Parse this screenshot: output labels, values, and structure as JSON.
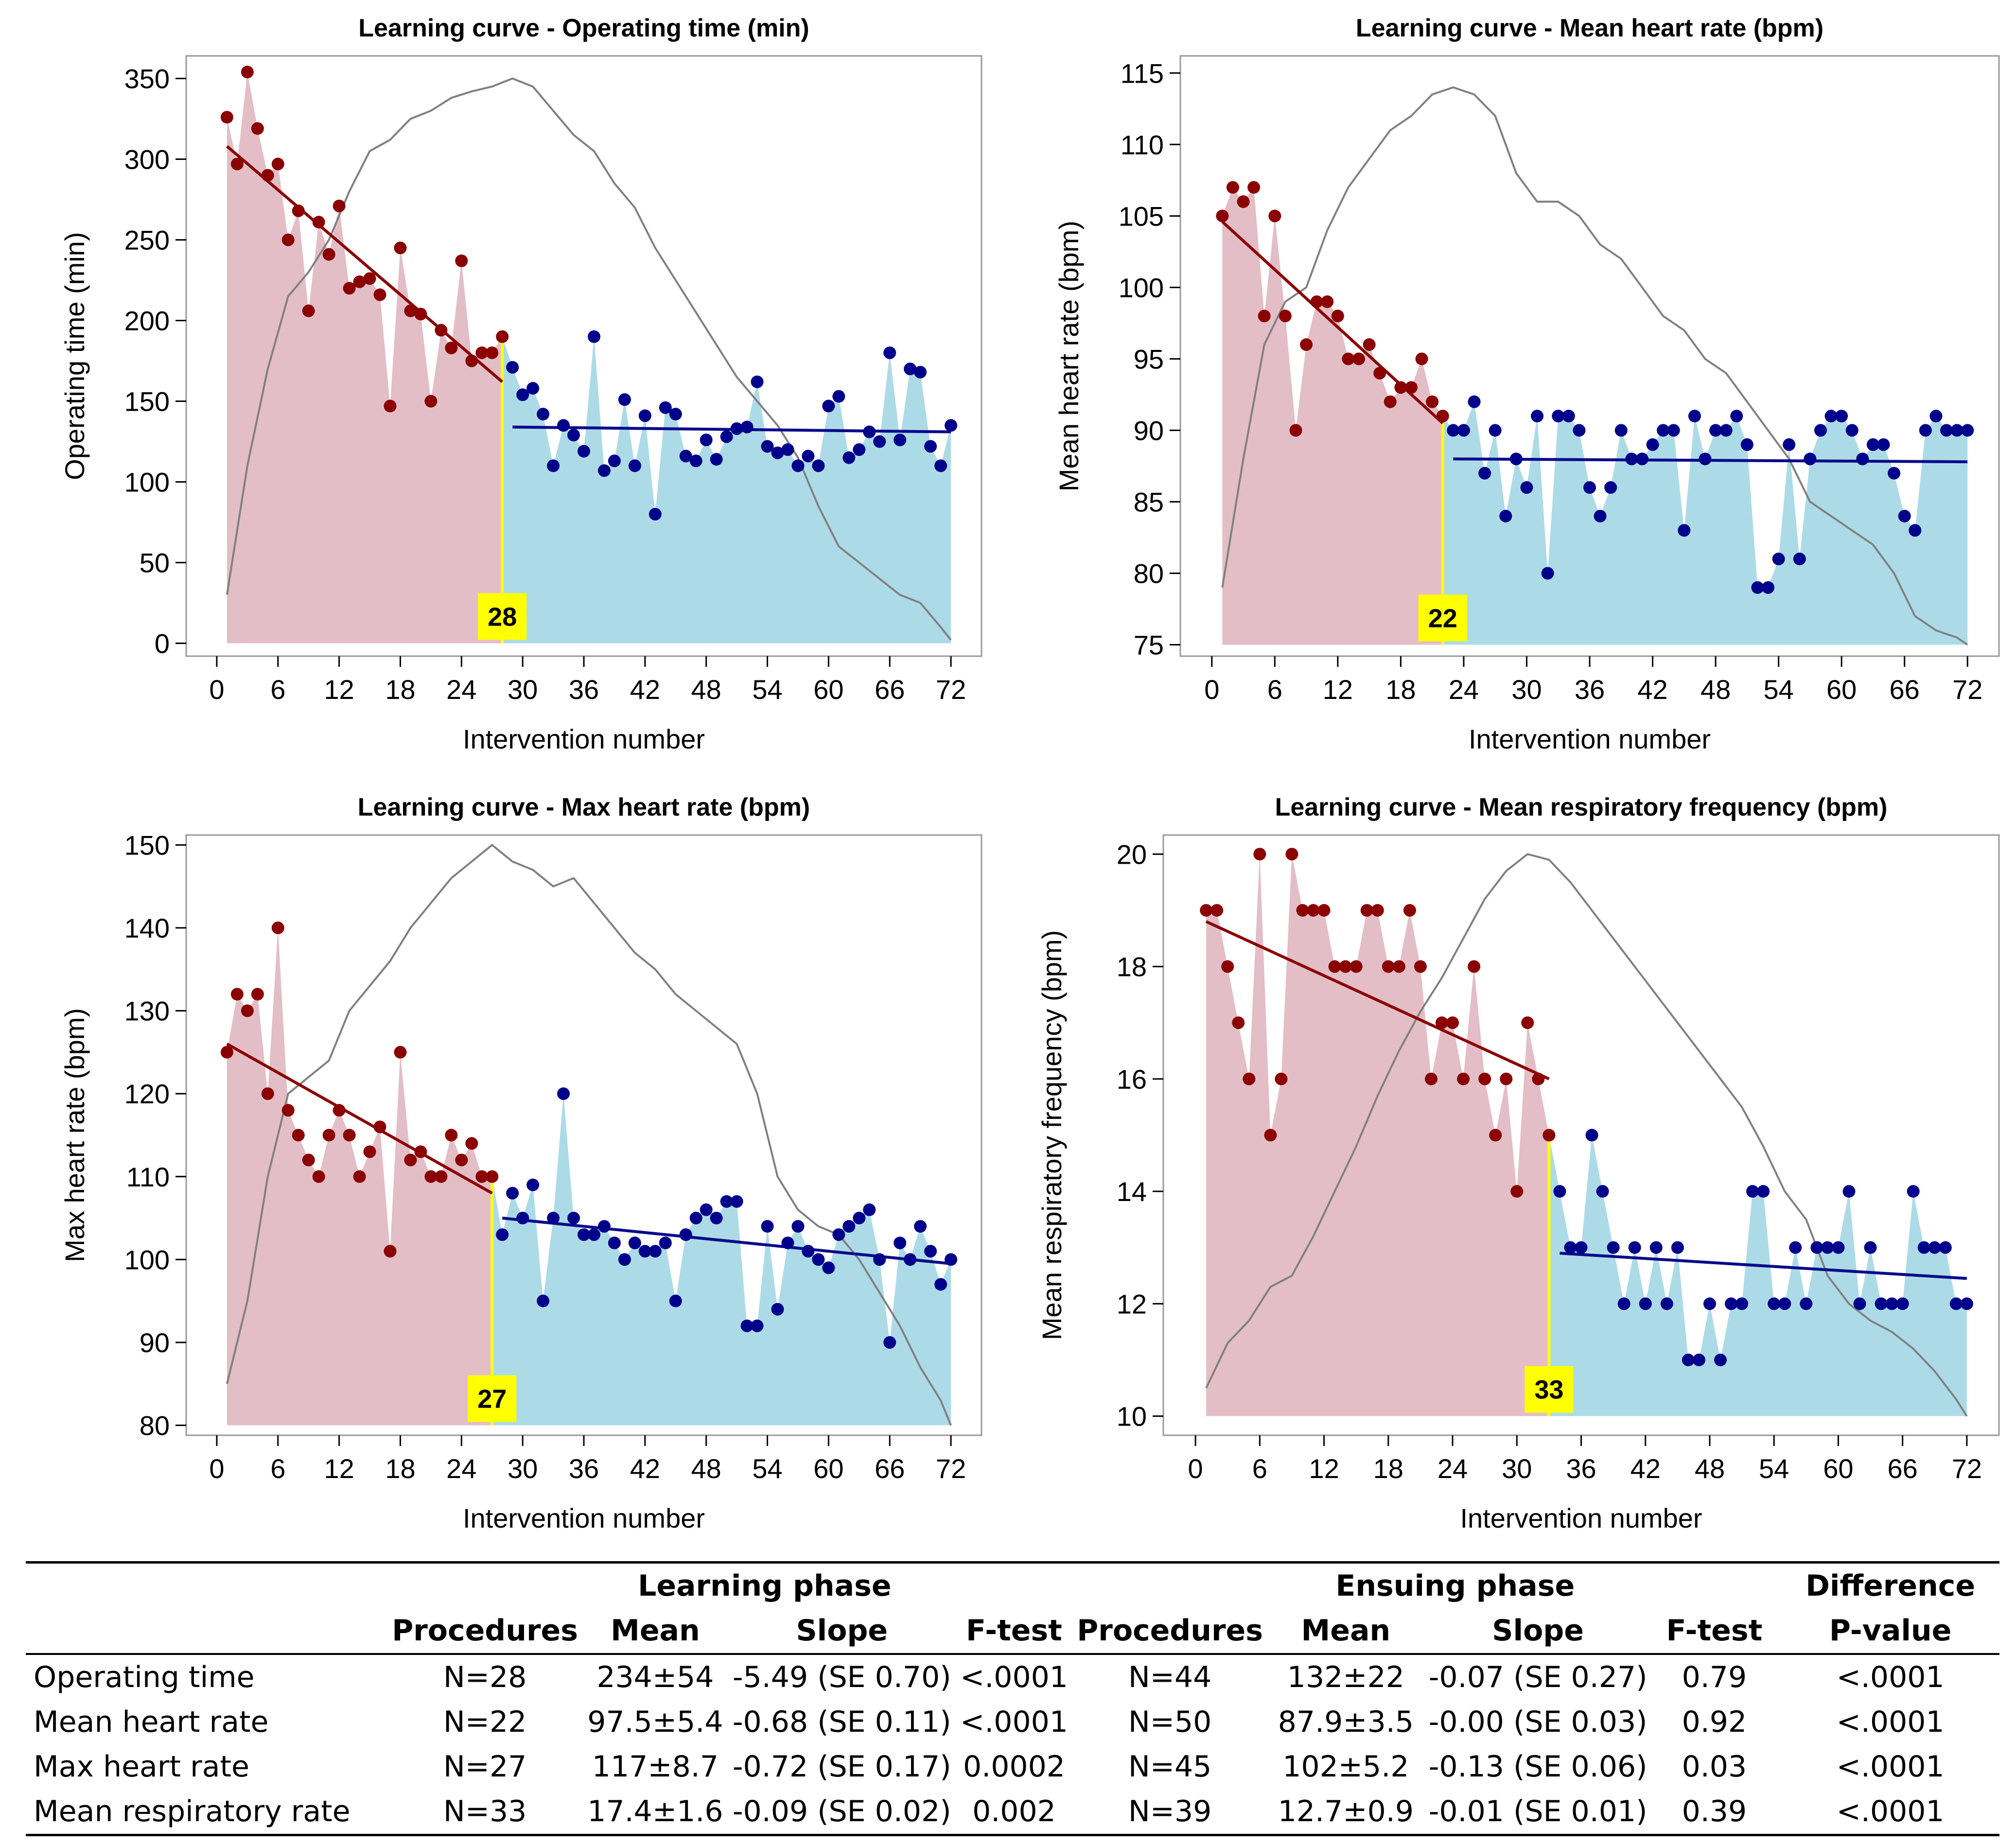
{
  "colors": {
    "learning_fill": "#e3bec7",
    "ensuing_fill": "#acdbe7",
    "learning_point": "#8b0000",
    "ensuing_point": "#00008b",
    "learning_line": "#8b0000",
    "ensuing_line": "#0a0a8c",
    "cumsum_line": "#808080",
    "cut_line": "#ffff00",
    "cut_label_bg": "#ffff00"
  },
  "chart_data": [
    {
      "type": "line",
      "title": "Learning curve - Operating time (min)",
      "xlabel": "Intervention number",
      "ylabel": "Operating time (min)",
      "xlim": [
        -3,
        75
      ],
      "ylim": [
        -8,
        364
      ],
      "xticks": [
        0,
        6,
        12,
        18,
        24,
        30,
        36,
        42,
        48,
        54,
        60,
        66,
        72
      ],
      "yticks": [
        0,
        50,
        100,
        150,
        200,
        250,
        300,
        350
      ],
      "cutpoint": 28,
      "cutpoint_label": "28",
      "values": [
        326,
        297,
        354,
        319,
        290,
        297,
        250,
        268,
        206,
        261,
        241,
        271,
        220,
        224,
        226,
        216,
        147,
        245,
        206,
        204,
        150,
        194,
        183,
        237,
        175,
        180,
        180,
        190,
        171,
        154,
        158,
        142,
        110,
        135,
        129,
        119,
        190,
        107,
        113,
        151,
        110,
        141,
        80,
        146,
        142,
        116,
        113,
        126,
        114,
        128,
        133,
        134,
        162,
        122,
        118,
        120,
        110,
        116,
        110,
        147,
        153,
        115,
        120,
        131,
        125,
        180,
        126,
        170,
        168,
        122,
        110,
        135
      ],
      "learning_fit": {
        "x": [
          1,
          28
        ],
        "y": [
          308,
          162
        ]
      },
      "ensuing_fit": {
        "x": [
          29,
          72
        ],
        "y": [
          134,
          131
        ]
      },
      "cumsum": {
        "x": [
          1,
          3,
          5,
          7,
          9,
          11,
          13,
          15,
          17,
          19,
          21,
          23,
          25,
          27,
          29,
          31,
          33,
          35,
          37,
          39,
          41,
          43,
          45,
          47,
          49,
          51,
          53,
          55,
          57,
          59,
          61,
          63,
          65,
          67,
          69,
          71,
          72
        ],
        "y": [
          30,
          110,
          170,
          215,
          230,
          250,
          280,
          305,
          312,
          325,
          330,
          338,
          342,
          345,
          350,
          345,
          330,
          315,
          305,
          285,
          270,
          245,
          225,
          205,
          185,
          165,
          150,
          135,
          115,
          85,
          60,
          50,
          40,
          30,
          25,
          10,
          2
        ]
      }
    },
    {
      "type": "line",
      "title": "Learning curve - Mean heart rate (bpm)",
      "xlabel": "Intervention number",
      "ylabel": "Mean heart rate (bpm)",
      "xlim": [
        -3,
        75
      ],
      "ylim": [
        74.2,
        116.2
      ],
      "xticks": [
        0,
        6,
        12,
        18,
        24,
        30,
        36,
        42,
        48,
        54,
        60,
        66,
        72
      ],
      "yticks": [
        75,
        80,
        85,
        90,
        95,
        100,
        105,
        110,
        115
      ],
      "cutpoint": 22,
      "cutpoint_label": "22",
      "values": [
        105,
        107,
        106,
        107,
        98,
        105,
        98,
        90,
        96,
        99,
        99,
        98,
        95,
        95,
        96,
        94,
        92,
        93,
        93,
        95,
        92,
        91,
        90,
        90,
        92,
        87,
        90,
        84,
        88,
        86,
        91,
        80,
        91,
        91,
        90,
        86,
        84,
        86,
        90,
        88,
        88,
        89,
        90,
        90,
        83,
        91,
        88,
        90,
        90,
        91,
        89,
        79,
        79,
        81,
        89,
        81,
        88,
        90,
        91,
        91,
        90,
        88,
        89,
        89,
        87,
        84,
        83,
        90,
        91,
        90,
        90,
        90
      ],
      "learning_fit": {
        "x": [
          1,
          22
        ],
        "y": [
          104.6,
          90.5
        ]
      },
      "ensuing_fit": {
        "x": [
          23,
          72
        ],
        "y": [
          88,
          87.8
        ]
      },
      "cumsum": {
        "x": [
          1,
          3,
          5,
          7,
          9,
          11,
          13,
          15,
          17,
          19,
          21,
          23,
          25,
          27,
          29,
          31,
          33,
          35,
          37,
          39,
          41,
          43,
          45,
          47,
          49,
          51,
          53,
          55,
          57,
          59,
          61,
          63,
          65,
          67,
          69,
          71,
          72
        ],
        "y": [
          79,
          88,
          96,
          99,
          100,
          104,
          107,
          109,
          111,
          112,
          113.5,
          114,
          113.5,
          112,
          108,
          106,
          106,
          105,
          103,
          102,
          100,
          98,
          97,
          95,
          94,
          92,
          90,
          88,
          85,
          84,
          83,
          82,
          80,
          77,
          76,
          75.5,
          75
        ]
      }
    },
    {
      "type": "line",
      "title": "Learning curve - Max heart rate (bpm)",
      "xlabel": "Intervention number",
      "ylabel": "Max heart rate (bpm)",
      "xlim": [
        -3,
        75
      ],
      "ylim": [
        78.8,
        151.2
      ],
      "xticks": [
        0,
        6,
        12,
        18,
        24,
        30,
        36,
        42,
        48,
        54,
        60,
        66,
        72
      ],
      "yticks": [
        80,
        90,
        100,
        110,
        120,
        130,
        140,
        150
      ],
      "cutpoint": 27,
      "cutpoint_label": "27",
      "values": [
        125,
        132,
        130,
        132,
        120,
        140,
        118,
        115,
        112,
        110,
        115,
        118,
        115,
        110,
        113,
        116,
        101,
        125,
        112,
        113,
        110,
        110,
        115,
        112,
        114,
        110,
        110,
        103,
        108,
        105,
        109,
        95,
        105,
        120,
        105,
        103,
        103,
        104,
        102,
        100,
        102,
        101,
        101,
        102,
        95,
        103,
        105,
        106,
        105,
        107,
        107,
        92,
        92,
        104,
        94,
        102,
        104,
        101,
        100,
        99,
        103,
        104,
        105,
        106,
        100,
        90,
        102,
        100,
        104,
        101,
        97,
        100
      ],
      "learning_fit": {
        "x": [
          1,
          27
        ],
        "y": [
          126,
          108
        ]
      },
      "ensuing_fit": {
        "x": [
          28,
          72
        ],
        "y": [
          105,
          99.5
        ]
      },
      "cumsum": {
        "x": [
          1,
          3,
          5,
          7,
          9,
          11,
          13,
          15,
          17,
          19,
          21,
          23,
          25,
          27,
          29,
          31,
          33,
          35,
          37,
          39,
          41,
          43,
          45,
          47,
          49,
          51,
          53,
          55,
          57,
          59,
          61,
          63,
          65,
          67,
          69,
          71,
          72
        ],
        "y": [
          85,
          95,
          110,
          120,
          122,
          124,
          130,
          133,
          136,
          140,
          143,
          146,
          148,
          150,
          148,
          147,
          145,
          146,
          143,
          140,
          137,
          135,
          132,
          130,
          128,
          126,
          120,
          110,
          106,
          104,
          103,
          100,
          96,
          92,
          87,
          83,
          80
        ]
      }
    },
    {
      "type": "line",
      "title": "Learning curve - Mean respiratory frequency (bpm)",
      "xlabel": "Intervention number",
      "ylabel": "Mean respiratory frequency (bpm)",
      "xlim": [
        -3,
        75
      ],
      "ylim": [
        9.66,
        20.34
      ],
      "xticks": [
        0,
        6,
        12,
        18,
        24,
        30,
        36,
        42,
        48,
        54,
        60,
        66,
        72
      ],
      "yticks": [
        10,
        12,
        14,
        16,
        18,
        20
      ],
      "cutpoint": 33,
      "cutpoint_label": "33",
      "values": [
        19,
        19,
        18,
        17,
        16,
        20,
        15,
        16,
        20,
        19,
        19,
        19,
        18,
        18,
        18,
        19,
        19,
        18,
        18,
        19,
        18,
        16,
        17,
        17,
        16,
        18,
        16,
        15,
        16,
        14,
        17,
        16,
        15,
        14,
        13,
        13,
        15,
        14,
        13,
        12,
        13,
        12,
        13,
        12,
        13,
        11,
        11,
        12,
        11,
        12,
        12,
        14,
        14,
        12,
        12,
        13,
        12,
        13,
        13,
        13,
        14,
        12,
        13,
        12,
        12,
        12,
        14,
        13,
        13,
        13,
        12,
        12
      ],
      "learning_fit": {
        "x": [
          1,
          33
        ],
        "y": [
          18.8,
          16
        ]
      },
      "ensuing_fit": {
        "x": [
          34,
          72
        ],
        "y": [
          12.9,
          12.45
        ]
      },
      "cumsum": {
        "x": [
          1,
          3,
          5,
          7,
          9,
          11,
          13,
          15,
          17,
          19,
          21,
          23,
          25,
          27,
          29,
          31,
          33,
          35,
          37,
          39,
          41,
          43,
          45,
          47,
          49,
          51,
          53,
          55,
          57,
          59,
          61,
          63,
          65,
          67,
          69,
          71,
          72
        ],
        "y": [
          10.5,
          11.3,
          11.7,
          12.3,
          12.5,
          13.2,
          14,
          14.8,
          15.7,
          16.5,
          17.2,
          17.8,
          18.5,
          19.2,
          19.7,
          20,
          19.9,
          19.5,
          19,
          18.5,
          18,
          17.5,
          17,
          16.5,
          16,
          15.5,
          14.8,
          14,
          13.5,
          12.5,
          12,
          11.7,
          11.5,
          11.2,
          10.8,
          10.3,
          10
        ]
      }
    }
  ],
  "table": {
    "group_headers": {
      "learning": "Learning phase",
      "ensuing": "Ensuing phase",
      "difference": "Difference"
    },
    "column_headers": [
      "Procedures",
      "Mean",
      "Slope",
      "F-test",
      "Procedures",
      "Mean",
      "Slope",
      "F-test",
      "P-value"
    ],
    "rows": [
      {
        "label": "Operating time",
        "l_proc": "N=28",
        "l_mean": "234±54",
        "l_slope": "-5.49 (SE 0.70)",
        "l_f": "<.0001",
        "e_proc": "N=44",
        "e_mean": "132±22",
        "e_slope": "-0.07 (SE 0.27)",
        "e_f": "0.79",
        "p": "<.0001"
      },
      {
        "label": "Mean heart rate",
        "l_proc": "N=22",
        "l_mean": "97.5±5.4",
        "l_slope": "-0.68 (SE 0.11)",
        "l_f": "<.0001",
        "e_proc": "N=50",
        "e_mean": "87.9±3.5",
        "e_slope": "-0.00 (SE 0.03)",
        "e_f": "0.92",
        "p": "<.0001"
      },
      {
        "label": "Max heart rate",
        "l_proc": "N=27",
        "l_mean": "117±8.7",
        "l_slope": "-0.72 (SE 0.17)",
        "l_f": "0.0002",
        "e_proc": "N=45",
        "e_mean": "102±5.2",
        "e_slope": "-0.13 (SE 0.06)",
        "e_f": "0.03",
        "p": "<.0001"
      },
      {
        "label": "Mean respiratory rate",
        "l_proc": "N=33",
        "l_mean": "17.4±1.6",
        "l_slope": "-0.09 (SE 0.02)",
        "l_f": "0.002",
        "e_proc": "N=39",
        "e_mean": "12.7±0.9",
        "e_slope": "-0.01 (SE 0.01)",
        "e_f": "0.39",
        "p": "<.0001"
      }
    ]
  }
}
